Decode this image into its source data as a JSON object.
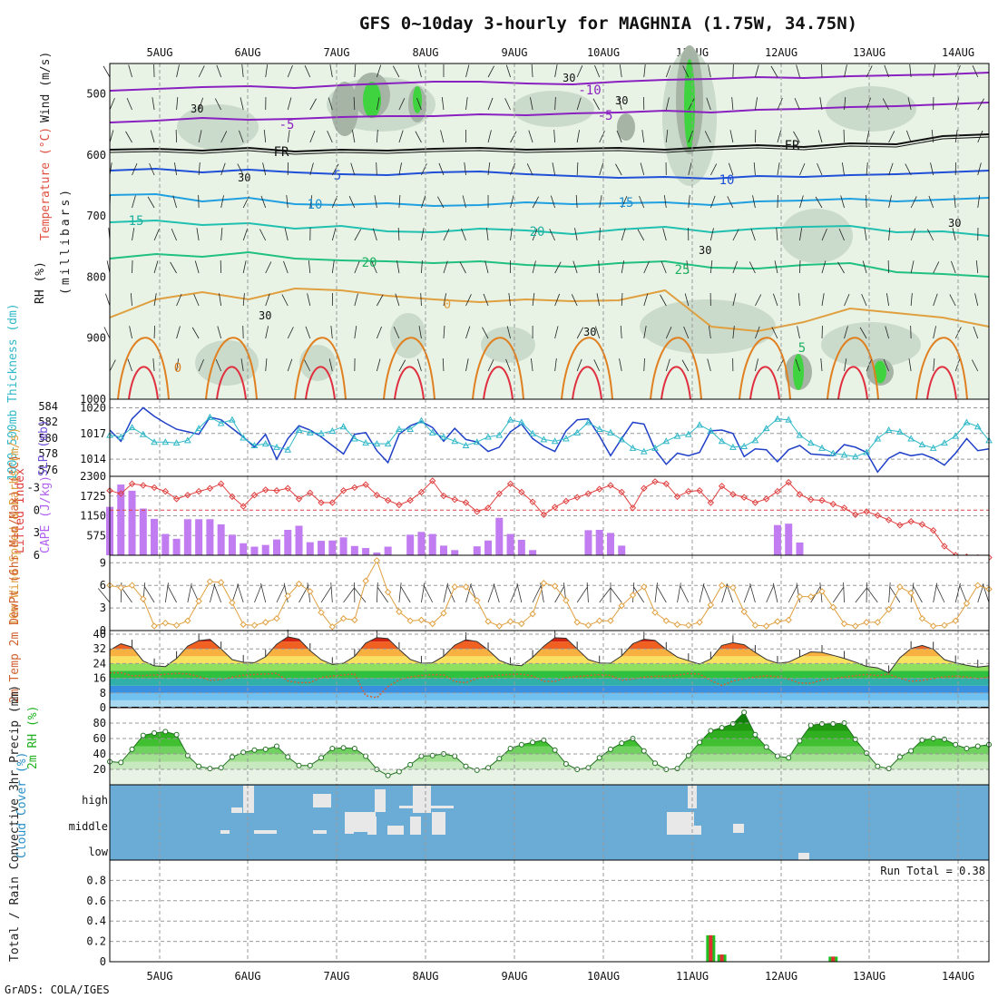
{
  "title": "GFS 0~10day 3-hourly for MAGHNIA (1.75W, 34.75N)",
  "footer": "GrADS: COLA/IGES",
  "dates": [
    "5AUG",
    "6AUG",
    "7AUG",
    "8AUG",
    "9AUG",
    "10AUG",
    "11AUG",
    "12AUG",
    "13AUG",
    "14AUG"
  ],
  "colors": {
    "rh_light": "#e8f3e6",
    "rh_mid": "#c8d8c8",
    "rh_dark": "#a6b4a6",
    "rh_green": "#3fd43f",
    "cloud_bg": "#6aacd6",
    "cloud_block": "#e8e8e8",
    "cape": "#c07cf0",
    "li_line": "#e04040",
    "slp_line": "#2040c8",
    "thick_line": "#30b8c8",
    "wind_line": "#e0a040",
    "rh2m": "#20b020"
  },
  "chart_data": [
    {
      "type": "contour",
      "name": "cross-section",
      "ylabel_parts": [
        "RH (%)",
        "Temperature (°C)",
        "Wind (m/s)",
        "(millibars)"
      ],
      "yticks": [
        500,
        600,
        700,
        800,
        900,
        1000
      ],
      "ylim": [
        1000,
        450
      ],
      "isotherm_labels": [
        "-10",
        "-5",
        "FR",
        "-5",
        "FR",
        "5",
        "10",
        "10",
        "15",
        "15",
        "20",
        "20",
        "25",
        "0",
        "0",
        "5"
      ],
      "rh_labels": [
        "30",
        "30",
        "30",
        "30",
        "30",
        "30",
        "30",
        "30"
      ]
    },
    {
      "type": "line",
      "name": "thickness-slp",
      "ylabel_left": "1000-500mb Thickness (dm)",
      "ylabel_right": "SLP (mb)",
      "yticks_left": [
        "584",
        "582",
        "580",
        "578",
        "576"
      ],
      "yticks_right": [
        "1020",
        "1017",
        "1014"
      ],
      "series": [
        {
          "name": "SLP (mb)",
          "values": [
            1017.4,
            1016.1,
            1018.7,
            1020,
            1019,
            1018.2,
            1017.5,
            1017.2,
            1016.9,
            1018.9,
            1018.6,
            1017.6,
            1016.6,
            1015.4,
            1016.9,
            1014,
            1016.4,
            1017.9,
            1017.4,
            1016.6,
            1015.6,
            1014.6,
            1016.9,
            1017.1,
            1015,
            1013.6,
            1016.9,
            1017.9,
            1018.4,
            1017.7,
            1016.1,
            1017.6,
            1016.3,
            1016,
            1014.9,
            1015.4,
            1017.2,
            1018.1,
            1016.4,
            1015.5,
            1014.9,
            1017.3,
            1018.6,
            1018.7,
            1016.7,
            1014.4,
            1016.4,
            1018.3,
            1018.1,
            1015.1,
            1013.4,
            1014.7,
            1014.4,
            1014.8,
            1017.3,
            1017.4,
            1017,
            1014.3,
            1015.2,
            1015.1,
            1013.7,
            1015.1,
            1015.6,
            1014.6,
            1014.5,
            1014.4,
            1015.7,
            1015.4,
            1014.8,
            1012.5,
            1014.1,
            1014.8,
            1014.4,
            1014.6,
            1014.1,
            1013.3,
            1014.7,
            1016.4,
            1015,
            1015.2
          ]
        },
        {
          "name": "1000-500mb Thickness (dm)",
          "values": [
            580.8,
            580.6,
            581.7,
            580.9,
            580,
            580,
            579.9,
            580.2,
            581.6,
            582.9,
            582.2,
            582.6,
            580.5,
            579.6,
            579.8,
            579.4,
            579.1,
            581.4,
            581.1,
            581,
            581.3,
            581.8,
            580.4,
            579.9,
            579.8,
            579.8,
            581.5,
            581.5,
            582.5,
            581.1,
            580.6,
            580.1,
            579.6,
            580,
            580.6,
            580.8,
            582.6,
            582.3,
            581,
            580.3,
            580.1,
            580.4,
            581.1,
            582.3,
            581.5,
            581.1,
            580.3,
            579.3,
            578.9,
            579.3,
            580.1,
            580.7,
            580.9,
            582,
            581.3,
            580.1,
            579.4,
            579.5,
            580.2,
            581.6,
            582.7,
            582.6,
            580.8,
            579.9,
            579.3,
            578.7,
            578.5,
            578.3,
            578.8,
            580.4,
            581.4,
            581.2,
            580.4,
            579.7,
            579.3,
            579.9,
            580.7,
            582.3,
            581.8,
            580.2
          ]
        }
      ]
    },
    {
      "type": "bar+line",
      "name": "cape-lifted-index",
      "ylabel_left": "Lifted Index",
      "ylabel_right": "CAPE (J/kg)",
      "yticks_left": [
        "-3",
        "0",
        "3",
        "6"
      ],
      "yticks_right": [
        "2300",
        "1725",
        "1150",
        "575"
      ],
      "cape_values": [
        1410,
        2060,
        1880,
        1360,
        1060,
        620,
        480,
        1050,
        1050,
        1050,
        900,
        600,
        350,
        250,
        300,
        460,
        740,
        860,
        380,
        420,
        430,
        520,
        270,
        210,
        80,
        250,
        0,
        600,
        680,
        620,
        280,
        150,
        0,
        260,
        430,
        1090,
        620,
        450,
        150,
        0,
        0,
        0,
        0,
        730,
        740,
        650,
        280,
        0,
        0,
        0,
        0,
        0,
        0,
        0,
        0,
        0,
        0,
        0,
        0,
        0,
        880,
        920,
        370,
        0,
        0,
        0,
        0,
        0,
        0,
        0,
        0,
        0,
        0,
        0,
        0,
        0,
        0,
        0,
        0,
        0
      ],
      "li_values": [
        -2.6,
        -2.2,
        -3.5,
        -3.3,
        -3,
        -2.5,
        -1.5,
        -2,
        -2.5,
        -2.9,
        -3.5,
        -1.8,
        -0.5,
        -2,
        -2.7,
        -2.6,
        -2.9,
        -1.5,
        -2.3,
        -1,
        -1,
        -2.6,
        -3,
        -3.4,
        -2,
        -1.3,
        -0.7,
        -1.3,
        -2.4,
        -3.9,
        -1.9,
        -1.4,
        -1,
        0.2,
        -0.3,
        -2.2,
        -3.5,
        -2.4,
        -1.1,
        0.6,
        -0.4,
        -1.2,
        -1.7,
        -2.2,
        -2.8,
        -3.3,
        -2.4,
        -0.3,
        -2.9,
        -3.8,
        -3.5,
        -1.8,
        -2.5,
        -2.6,
        -1,
        -3.2,
        -2.1,
        -1.7,
        -1,
        -1.5,
        -2.5,
        -3.7,
        -2.1,
        -1.4,
        -1.3,
        -0.8,
        -0.3,
        0.6,
        0.2,
        0.7,
        1.3,
        2,
        1.5,
        1.9,
        2.7,
        4.8,
        6,
        6.2,
        6.3,
        6.3
      ]
    },
    {
      "type": "line",
      "name": "10m-wind",
      "ylabel": "10m Wind Speed & Barbs (m/s)",
      "yticks": [
        "9",
        "6",
        "3",
        "0"
      ],
      "values": [
        6,
        5.7,
        6,
        4.2,
        0.6,
        1,
        0.7,
        1.3,
        3.9,
        6.5,
        6.4,
        3.7,
        0.8,
        0.7,
        1.1,
        1.6,
        4.6,
        6.2,
        5.2,
        2.4,
        0.5,
        1.6,
        1.4,
        6.6,
        9.3,
        5.1,
        2.5,
        1.3,
        1.4,
        0.9,
        2.3,
        5.8,
        5.8,
        4,
        1.2,
        0.6,
        1.2,
        0.9,
        2.2,
        6.3,
        5.9,
        4,
        1.1,
        0.7,
        1.3,
        1.3,
        3.3,
        4.7,
        5.8,
        2.4,
        1.3,
        0.8,
        0.7,
        1.1,
        3.4,
        6,
        5.7,
        2.5,
        0.7,
        0.6,
        1.2,
        1.4,
        4.5,
        4.5,
        5.2,
        3.1,
        0.9,
        0.6,
        1.1,
        1.1,
        2.8,
        5.8,
        5,
        1.6,
        0.6,
        0.7,
        1.3,
        3.6,
        6,
        5.5
      ]
    },
    {
      "type": "area",
      "name": "2m-temp-dewpt",
      "ylabel": "2m Temp 2m DewPt (6hr Min/Max) (°C)",
      "yticks": [
        "40",
        "32",
        "24",
        "16",
        "8",
        "0"
      ],
      "ylim": [
        0,
        40
      ],
      "temp_values": [
        31.4,
        34.8,
        33,
        25.4,
        22.8,
        22.4,
        26.8,
        33.5,
        36.5,
        37.2,
        32,
        26.2,
        24.7,
        24.5,
        27.7,
        34.6,
        38.6,
        37.3,
        31.1,
        26.1,
        23.5,
        24.2,
        27.9,
        35.2,
        38.2,
        37.6,
        31.7,
        26.3,
        24.2,
        24.4,
        28,
        34,
        37,
        36,
        31.5,
        25.8,
        23.4,
        22.9,
        27.4,
        33.5,
        38.1,
        37.8,
        32,
        26.2,
        24.3,
        24.2,
        28.2,
        34.8,
        37.3,
        36.6,
        31.7,
        27.5,
        25.6,
        23.7,
        26.5,
        33.9,
        35.4,
        34.3,
        30.1,
        26.3,
        24.2,
        24.8,
        27.7,
        30.4,
        30.1,
        28.5,
        26.9,
        24.8,
        22.5,
        21.7,
        19,
        27.2,
        32.2,
        33.9,
        31.9,
        26.2,
        24.4,
        23.1,
        22.1,
        22.8
      ],
      "dew_values": [
        19,
        19,
        17.4,
        17.5,
        17.8,
        18.2,
        18.7,
        18.4,
        17,
        14.9,
        15.2,
        16.6,
        17.7,
        18.1,
        18.4,
        18.7,
        14.6,
        13.6,
        13.7,
        16.4,
        17.3,
        17.8,
        18.4,
        6.5,
        5.5,
        11.5,
        15.1,
        16.7,
        17.6,
        17.9,
        17.9,
        14.3,
        13.6,
        15.9,
        17,
        17.7,
        18.1,
        18.3,
        17.3,
        14.4,
        14.3,
        16.4,
        17,
        17.5,
        18,
        17.6,
        14.9,
        15.6,
        16.6,
        17.1,
        17.1,
        17.7,
        18.6,
        18.3,
        14.8,
        12.1,
        14.5,
        15.8,
        16.7,
        17.4,
        16.9,
        15.5,
        13.4,
        13.3,
        15,
        15.8,
        16.6,
        17.5,
        18.1,
        17.5,
        18.3,
        16,
        14.4,
        14.8,
        15.8,
        16.8,
        17.2,
        16.7,
        15.8,
        16.6
      ]
    },
    {
      "type": "area",
      "name": "2m-rh",
      "ylabel": "2m RH (%)",
      "yticks": [
        "80",
        "60",
        "40",
        "20"
      ],
      "ylim": [
        0,
        100
      ],
      "values": [
        30,
        29,
        46,
        64,
        67,
        69,
        65,
        38,
        24,
        21,
        22,
        36,
        42,
        45,
        46,
        50,
        36,
        25,
        25,
        35,
        47,
        48,
        47,
        37,
        20,
        12,
        17,
        26,
        37,
        38,
        40,
        37,
        24,
        19,
        22,
        34,
        47,
        52,
        55,
        58,
        45,
        27,
        20,
        22,
        35,
        46,
        54,
        60,
        44,
        28,
        20,
        21,
        38,
        55,
        70,
        74,
        79,
        94,
        65,
        49,
        37,
        35,
        57,
        77,
        79,
        79,
        80,
        59,
        41,
        24,
        21,
        36,
        44,
        58,
        60,
        59,
        52,
        47,
        50,
        52
      ]
    },
    {
      "type": "table",
      "name": "cloud-cover",
      "ylabel": "Cloud Cover (%)",
      "levels": [
        "high",
        "middle",
        "low"
      ]
    },
    {
      "type": "bar",
      "name": "precip",
      "ylabel": "Total / Rain Convective 3hr Precip (mm)",
      "yticks": [
        "0.8",
        "0.6",
        "0.4",
        "0.2",
        "0"
      ],
      "ylim": [
        0,
        1
      ],
      "run_total": "Run Total = 0.38",
      "total_values": [
        0,
        0,
        0,
        0,
        0,
        0,
        0,
        0,
        0,
        0,
        0,
        0,
        0,
        0,
        0,
        0,
        0,
        0,
        0,
        0,
        0,
        0,
        0,
        0,
        0,
        0,
        0,
        0,
        0,
        0,
        0,
        0,
        0,
        0,
        0,
        0,
        0,
        0,
        0,
        0,
        0,
        0,
        0,
        0,
        0,
        0,
        0,
        0,
        0,
        0,
        0,
        0,
        0,
        0,
        0.26,
        0.07,
        0,
        0,
        0,
        0,
        0,
        0,
        0,
        0,
        0,
        0.05,
        0,
        0,
        0,
        0,
        0,
        0,
        0,
        0,
        0,
        0,
        0,
        0,
        0,
        0
      ],
      "conv_values": [
        0,
        0,
        0,
        0,
        0,
        0,
        0,
        0,
        0,
        0,
        0,
        0,
        0,
        0,
        0,
        0,
        0,
        0,
        0,
        0,
        0,
        0,
        0,
        0,
        0,
        0,
        0,
        0,
        0,
        0,
        0,
        0,
        0,
        0,
        0,
        0,
        0,
        0,
        0,
        0,
        0,
        0,
        0,
        0,
        0,
        0,
        0,
        0,
        0,
        0,
        0,
        0,
        0,
        0,
        0.26,
        0.07,
        0,
        0,
        0,
        0,
        0,
        0,
        0,
        0,
        0,
        0.05,
        0,
        0,
        0,
        0,
        0,
        0,
        0,
        0,
        0,
        0,
        0,
        0,
        0,
        0
      ]
    }
  ]
}
